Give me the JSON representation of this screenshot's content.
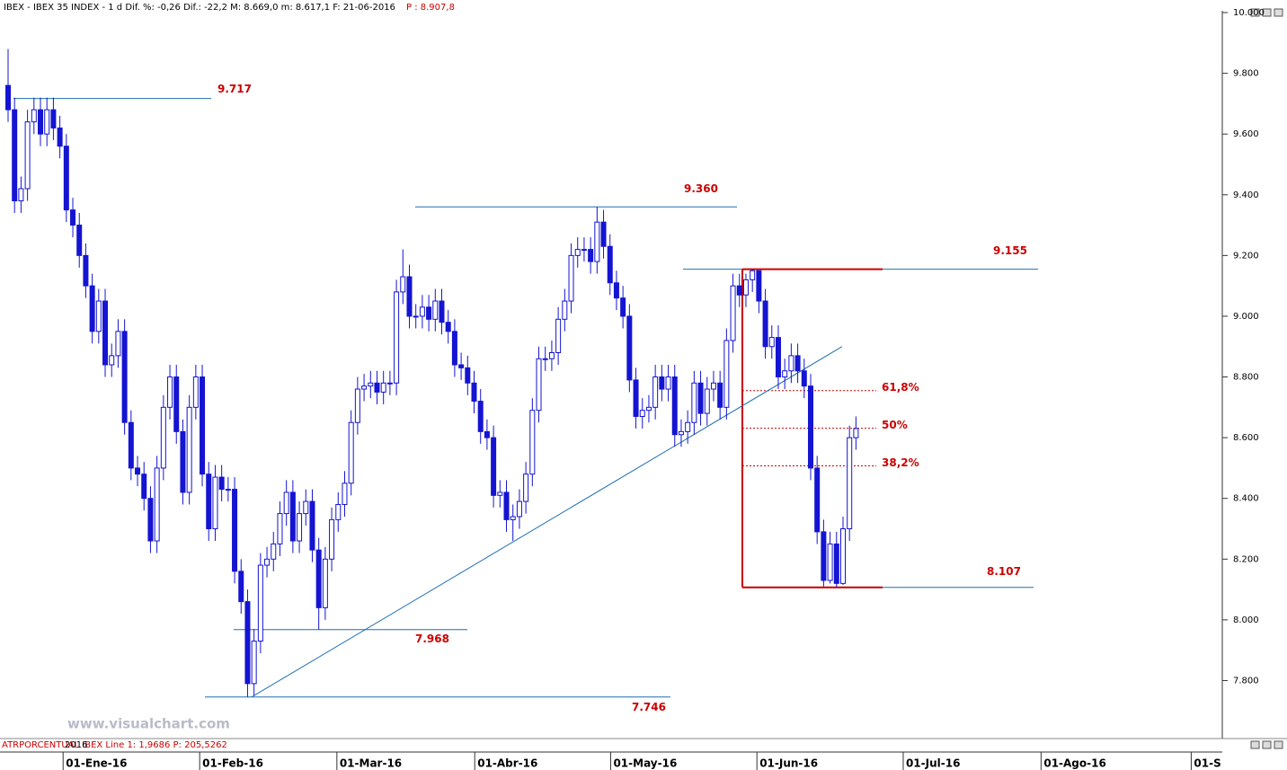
{
  "chart_data": {
    "type": "candlestick",
    "header": "IBEX - IBEX 35 INDEX - 1 d Dif. %: -0,26 Dif.: -22,2 M: 8.669,0 m: 8.617,1 F: 21-06-2016",
    "price_label": "P : 8.907,8",
    "indicator_label": "ATRPORCENTUAL IBEX Line 1: 1,9686 P: 205,5262",
    "year_label": "2016",
    "watermark": "www.visualchart.com",
    "color": "#1414d2",
    "level_color": "#1f6fb5",
    "annotation_color": "#cc0000",
    "open": [
      9760,
      9680,
      9380,
      9420,
      9640,
      9680,
      9600,
      9680,
      9620,
      9560,
      9350,
      9300,
      9200,
      9100,
      8950,
      9050,
      8840,
      8870,
      8950,
      8650,
      8500,
      8480,
      8400,
      8260,
      8500,
      8700,
      8800,
      8620,
      8420,
      8700,
      8800,
      8480,
      8300,
      8470,
      8430,
      8430,
      8160,
      8060,
      7790,
      7930,
      8180,
      8200,
      8250,
      8350,
      8420,
      8260,
      8350,
      8390,
      8230,
      8040,
      8200,
      8330,
      8380,
      8450,
      8650,
      8760,
      8770,
      8780,
      8750,
      8780,
      8780,
      9080,
      9130,
      9000,
      9000,
      9030,
      8990,
      9050,
      8980,
      8950,
      8840,
      8830,
      8780,
      8720,
      8620,
      8600,
      8410,
      8420,
      8330,
      8340,
      8390,
      8480,
      8690,
      8860,
      8860,
      8880,
      8990,
      9050,
      9200,
      9220,
      9220,
      9180,
      9310,
      9230,
      9110,
      9060,
      9000,
      8790,
      8670,
      8690,
      8700,
      8800,
      8760,
      8800,
      8610,
      8620,
      8650,
      8780,
      8680,
      8760,
      8780,
      8700,
      8920,
      9100,
      9070,
      9120,
      9150,
      9050,
      8900,
      8930,
      8800,
      8820,
      8870,
      8820,
      8770,
      8500,
      8290,
      8130,
      8250,
      8120,
      8300,
      8600
    ],
    "high": [
      9880,
      9720,
      9460,
      9680,
      9720,
      9720,
      9720,
      9720,
      9660,
      9600,
      9390,
      9340,
      9240,
      9140,
      9090,
      9090,
      8910,
      8990,
      8990,
      8690,
      8540,
      8520,
      8440,
      8540,
      8740,
      8840,
      8840,
      8660,
      8740,
      8840,
      8840,
      8520,
      8510,
      8510,
      8470,
      8470,
      8200,
      8100,
      7970,
      8220,
      8240,
      8290,
      8390,
      8460,
      8460,
      8390,
      8430,
      8430,
      8270,
      8240,
      8370,
      8420,
      8490,
      8690,
      8800,
      8810,
      8820,
      8820,
      8820,
      8820,
      9120,
      9220,
      9170,
      9040,
      9070,
      9070,
      9090,
      9090,
      9020,
      8990,
      8880,
      8870,
      8820,
      8760,
      8660,
      8640,
      8460,
      8460,
      8380,
      8430,
      8520,
      8730,
      8900,
      8900,
      8920,
      9030,
      9090,
      9240,
      9260,
      9260,
      9260,
      9360,
      9350,
      9270,
      9150,
      9100,
      9040,
      8830,
      8730,
      8740,
      8840,
      8840,
      8840,
      8840,
      8660,
      8690,
      8820,
      8820,
      8800,
      8820,
      8820,
      8960,
      9140,
      9140,
      9140,
      9155,
      9150,
      9090,
      8970,
      8970,
      8860,
      8910,
      8910,
      8860,
      8810,
      8540,
      8330,
      8290,
      8290,
      8340,
      8640,
      8670
    ],
    "low": [
      9640,
      9340,
      9340,
      9380,
      9600,
      9560,
      9560,
      9580,
      9520,
      9310,
      9260,
      9160,
      9060,
      8910,
      8910,
      8800,
      8800,
      8830,
      8610,
      8460,
      8440,
      8360,
      8220,
      8220,
      8460,
      8660,
      8580,
      8380,
      8380,
      8660,
      8440,
      8260,
      8260,
      8390,
      8390,
      8120,
      8020,
      7746,
      7750,
      7890,
      8140,
      8160,
      8210,
      8310,
      8220,
      8220,
      8310,
      8190,
      7968,
      8000,
      8160,
      8290,
      8340,
      8410,
      8610,
      8720,
      8730,
      8710,
      8710,
      8740,
      8740,
      9040,
      8960,
      8960,
      8960,
      8950,
      8950,
      8940,
      8910,
      8800,
      8790,
      8740,
      8680,
      8580,
      8560,
      8370,
      8370,
      8290,
      8260,
      8300,
      8350,
      8440,
      8650,
      8820,
      8820,
      8840,
      8950,
      9010,
      9160,
      9180,
      9140,
      9140,
      9190,
      9070,
      9020,
      8960,
      8750,
      8630,
      8630,
      8650,
      8660,
      8720,
      8720,
      8570,
      8570,
      8580,
      8610,
      8640,
      8640,
      8720,
      8660,
      8660,
      8880,
      9030,
      9030,
      9080,
      9010,
      8860,
      8860,
      8760,
      8760,
      8780,
      8780,
      8730,
      8460,
      8250,
      8110,
      8120,
      8107,
      8115,
      8260,
      8560
    ],
    "close": [
      9680,
      9380,
      9420,
      9640,
      9680,
      9600,
      9680,
      9620,
      9560,
      9350,
      9300,
      9200,
      9100,
      8950,
      9050,
      8840,
      8870,
      8950,
      8650,
      8500,
      8480,
      8400,
      8260,
      8500,
      8700,
      8800,
      8620,
      8420,
      8700,
      8800,
      8480,
      8300,
      8470,
      8430,
      8430,
      8160,
      8060,
      7790,
      7930,
      8180,
      8200,
      8250,
      8350,
      8420,
      8260,
      8350,
      8390,
      8230,
      8040,
      8200,
      8330,
      8380,
      8450,
      8650,
      8760,
      8770,
      8780,
      8750,
      8780,
      8780,
      9080,
      9130,
      9000,
      9000,
      9030,
      8990,
      9050,
      8980,
      8950,
      8840,
      8830,
      8780,
      8720,
      8620,
      8600,
      8410,
      8420,
      8330,
      8340,
      8390,
      8480,
      8690,
      8860,
      8860,
      8880,
      8990,
      9050,
      9200,
      9220,
      9220,
      9180,
      9310,
      9230,
      9110,
      9060,
      9000,
      8790,
      8670,
      8690,
      8700,
      8800,
      8760,
      8800,
      8610,
      8620,
      8650,
      8780,
      8680,
      8760,
      8780,
      8700,
      8920,
      9100,
      9070,
      9120,
      9150,
      9050,
      8900,
      8930,
      8800,
      8820,
      8870,
      8820,
      8770,
      8500,
      8290,
      8130,
      8250,
      8120,
      8300,
      8600,
      8630
    ],
    "xlim": [
      -1.25,
      187.6
    ],
    "xticks": [
      {
        "value": 8.5,
        "label": "01-Ene-16"
      },
      {
        "value": 29.6,
        "label": "01-Feb-16"
      },
      {
        "value": 50.8,
        "label": "01-Mar-16"
      },
      {
        "value": 72.1,
        "label": "01-Abr-16"
      },
      {
        "value": 93.1,
        "label": "01-May-16"
      },
      {
        "value": 115.7,
        "label": "01-Jun-16"
      },
      {
        "value": 138.3,
        "label": "01-Jul-16"
      },
      {
        "value": 159.6,
        "label": "01-Ago-16"
      },
      {
        "value": 182.8,
        "label": "01-S"
      }
    ],
    "ylim": [
      7615,
      10000
    ],
    "yticks": [
      {
        "value": 7800,
        "label": "7.800"
      },
      {
        "value": 8000,
        "label": "8.000"
      },
      {
        "value": 8200,
        "label": "8.200"
      },
      {
        "value": 8400,
        "label": "8.400"
      },
      {
        "value": 8600,
        "label": "8.600"
      },
      {
        "value": 8800,
        "label": "8.800"
      },
      {
        "value": 9000,
        "label": "9.000"
      },
      {
        "value": 9200,
        "label": "9.200"
      },
      {
        "value": 9400,
        "label": "9.400"
      },
      {
        "value": 9600,
        "label": "9.600"
      },
      {
        "value": 9800,
        "label": "9.800"
      },
      {
        "value": 10000,
        "label": "10.000"
      }
    ],
    "levels": [
      {
        "value": 9717,
        "label": "9.717"
      },
      {
        "value": 9360,
        "label": "9.360"
      },
      {
        "value": 9155,
        "label": "9.155"
      },
      {
        "value": 8107,
        "label": "8.107"
      },
      {
        "value": 7968,
        "label": "7.968"
      },
      {
        "value": 7746,
        "label": "7.746"
      }
    ],
    "fibonacci": [
      {
        "value": 8755,
        "label": "61,8%"
      },
      {
        "value": 8631,
        "label": "50%"
      },
      {
        "value": 8507,
        "label": "38,2%"
      }
    ],
    "trendline": {
      "from": 7746,
      "to": 8900
    }
  }
}
